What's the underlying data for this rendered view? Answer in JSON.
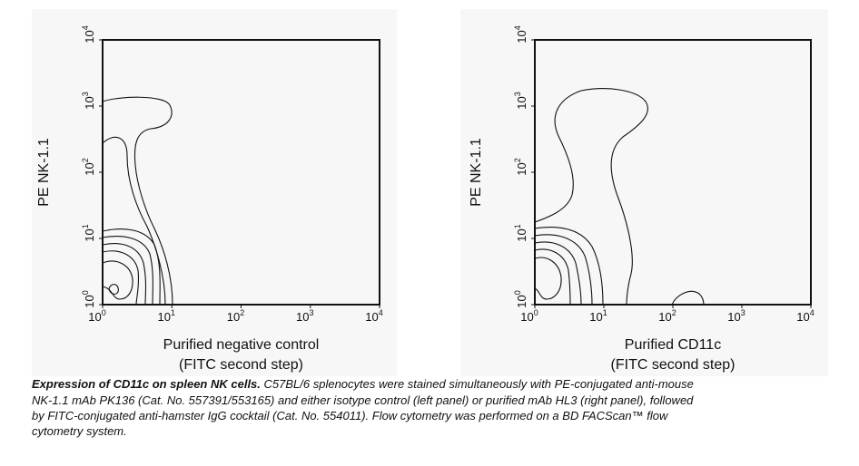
{
  "panels": [
    {
      "y_label": "PE NK-1.1",
      "x_label": [
        "Purified negative control",
        "(FITC second step)"
      ],
      "tick_base": "10",
      "x_tick_exponents": [
        "0",
        "1",
        "2",
        "3",
        "4"
      ],
      "y_tick_exponents": [
        "0",
        "1",
        "2",
        "3",
        "4"
      ]
    },
    {
      "y_label": "PE NK-1.1",
      "x_label": [
        "Purified CD11c",
        "(FITC second step)"
      ],
      "tick_base": "10",
      "x_tick_exponents": [
        "0",
        "1",
        "2",
        "3",
        "4"
      ],
      "y_tick_exponents": [
        "0",
        "1",
        "2",
        "3",
        "4"
      ]
    }
  ],
  "caption": {
    "bold": "Expression of CD11c on spleen NK cells.",
    "lines": [
      "C57BL/6 splenocytes were stained simultaneously with PE-conjugated anti-mouse",
      "NK-1.1 mAb PK136 (Cat. No. 557391/553165) and either isotype control (left panel) or purified mAb HL3 (right panel), followed",
      "by FITC-conjugated anti-hamster IgG cocktail (Cat. No. 554011). Flow cytometry was performed on a BD FACScan™ flow",
      "cytometry system."
    ]
  }
}
